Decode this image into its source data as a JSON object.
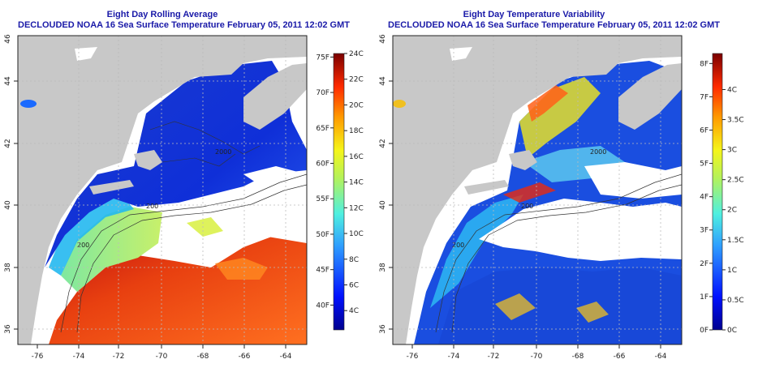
{
  "colors": {
    "title": "#1a1aa8",
    "land": "#c8c8c8",
    "no_data": "#ffffff",
    "axis": "#222222"
  },
  "panels": [
    {
      "id": "average",
      "title_line1": "Eight Day Rolling Average",
      "title_line2": "DECLOUDED NOAA 16 Sea Surface Temperature February 05, 2011 12:02 GMT",
      "lon_ticks": [
        "-76",
        "-74",
        "-72",
        "-70",
        "-68",
        "-66",
        "-64"
      ],
      "lat_ticks": [
        "36",
        "38",
        "40",
        "42",
        "44",
        "46"
      ],
      "colorbar_left_labels": [
        "40F",
        "45F",
        "50F",
        "55F",
        "60F",
        "65F",
        "70F",
        "75F"
      ],
      "colorbar_right_labels": [
        "4C",
        "6C",
        "8C",
        "10C",
        "12C",
        "14C",
        "16C",
        "18C",
        "20C",
        "22C",
        "24C"
      ],
      "contour_labels": [
        "200",
        "2000",
        "200"
      ]
    },
    {
      "id": "variability",
      "title_line1": "Eight Day Temperature Variability",
      "title_line2": "DECLOUDED NOAA 16 Sea Surface Temperature February 05, 2011 12:02 GMT",
      "lon_ticks": [
        "-76",
        "-74",
        "-72",
        "-70",
        "-68",
        "-66",
        "-64"
      ],
      "lat_ticks": [
        "36",
        "38",
        "40",
        "42",
        "44",
        "46"
      ],
      "colorbar_left_labels": [
        "0F",
        "1F",
        "2F",
        "3F",
        "4F",
        "5F",
        "6F",
        "7F",
        "8F"
      ],
      "colorbar_right_labels": [
        "0C",
        "0.5C",
        "1C",
        "1.5C",
        "2C",
        "2.5C",
        "3C",
        "3.5C",
        "4C"
      ],
      "contour_labels": [
        "200",
        "2000",
        "200"
      ]
    }
  ],
  "map_extent": {
    "lon": [
      -77,
      -63
    ],
    "lat": [
      35,
      46
    ]
  },
  "colorbar_ranges": {
    "average_F": [
      36.5,
      75.5
    ],
    "average_C": [
      2.5,
      24
    ],
    "variability_F": [
      0,
      8.3
    ],
    "variability_C": [
      0,
      4.6
    ]
  }
}
